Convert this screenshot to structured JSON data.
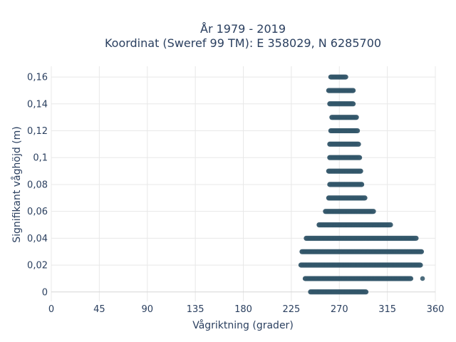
{
  "chart_data": {
    "type": "scatter",
    "title": [
      "År 1979 - 2019",
      "Koordinat (Sweref 99 TM): E 358029, N 6285700"
    ],
    "xlabel": "Vågriktning (grader)",
    "ylabel": "Signifikant våghöjd (m)",
    "xlim": [
      0,
      360
    ],
    "ylim": [
      -0.007,
      0.168
    ],
    "xticks": [
      0,
      45,
      90,
      135,
      180,
      225,
      270,
      315,
      360
    ],
    "yticks": [
      0,
      0.02,
      0.04,
      0.06,
      0.08,
      0.1,
      0.12,
      0.14,
      0.16
    ],
    "ytick_labels": [
      "0",
      "0,02",
      "0,04",
      "0,06",
      "0,08",
      "0,1",
      "0,12",
      "0,14",
      "0,16"
    ],
    "grid": true,
    "marker_color": "#2e5266",
    "bands": [
      {
        "y": 0.0,
        "x_min": 243,
        "x_max": 295
      },
      {
        "y": 0.01,
        "x_min": 238,
        "x_max": 337
      },
      {
        "y": 0.02,
        "x_min": 234,
        "x_max": 346
      },
      {
        "y": 0.03,
        "x_min": 235,
        "x_max": 347
      },
      {
        "y": 0.04,
        "x_min": 239,
        "x_max": 342
      },
      {
        "y": 0.05,
        "x_min": 251,
        "x_max": 318
      },
      {
        "y": 0.06,
        "x_min": 257,
        "x_max": 302
      },
      {
        "y": 0.07,
        "x_min": 260,
        "x_max": 294
      },
      {
        "y": 0.08,
        "x_min": 261,
        "x_max": 291
      },
      {
        "y": 0.09,
        "x_min": 260,
        "x_max": 290
      },
      {
        "y": 0.1,
        "x_min": 261,
        "x_max": 289
      },
      {
        "y": 0.11,
        "x_min": 261,
        "x_max": 288
      },
      {
        "y": 0.12,
        "x_min": 262,
        "x_max": 287
      },
      {
        "y": 0.13,
        "x_min": 263,
        "x_max": 286
      },
      {
        "y": 0.14,
        "x_min": 261,
        "x_max": 283
      },
      {
        "y": 0.15,
        "x_min": 260,
        "x_max": 283
      },
      {
        "y": 0.16,
        "x_min": 262,
        "x_max": 276
      }
    ]
  }
}
